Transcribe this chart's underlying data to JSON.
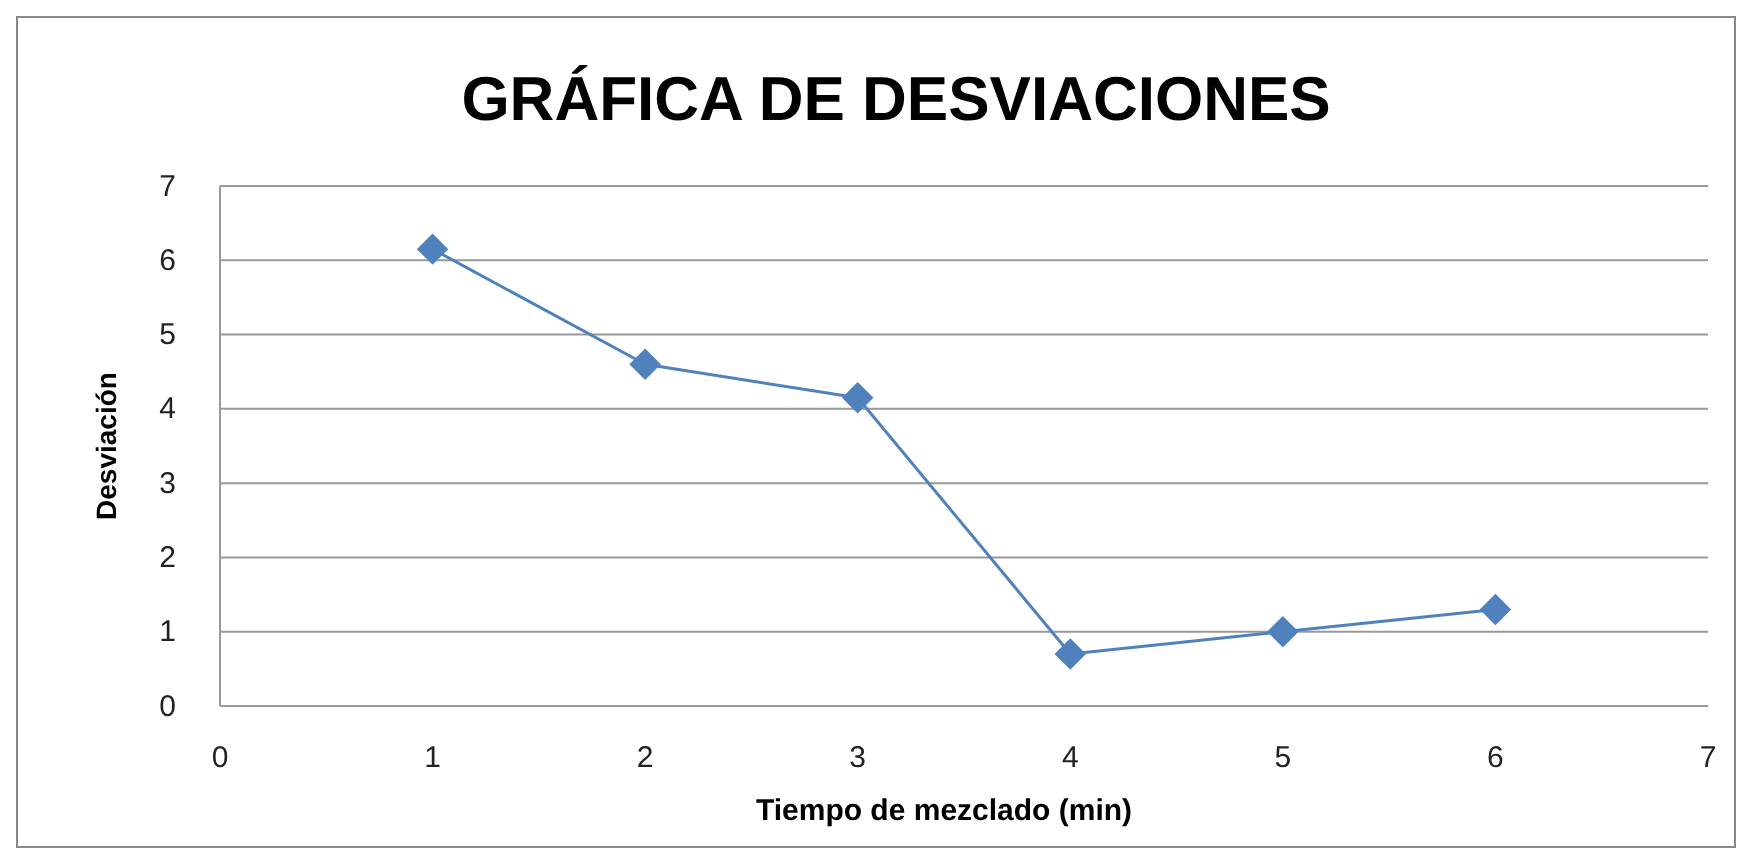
{
  "chart_data": {
    "type": "line",
    "title": "GRÁFICA DE DESVIACIONES",
    "xlabel": "Tiempo de mezclado (min)",
    "ylabel": "Desviación",
    "x": [
      1,
      2,
      3,
      4,
      5,
      6
    ],
    "series": [
      {
        "color": "#4f81bd",
        "values": [
          6.15,
          4.6,
          4.15,
          0.7,
          1.0,
          1.3
        ]
      }
    ],
    "xlim": [
      0,
      7
    ],
    "xticks": [
      0,
      1,
      2,
      3,
      4,
      5,
      6,
      7
    ],
    "ylim": [
      0,
      7
    ],
    "yticks": [
      0,
      1,
      2,
      3,
      4,
      5,
      6,
      7
    ],
    "grid": "y",
    "marker": "diamond",
    "line_style": "solid"
  }
}
